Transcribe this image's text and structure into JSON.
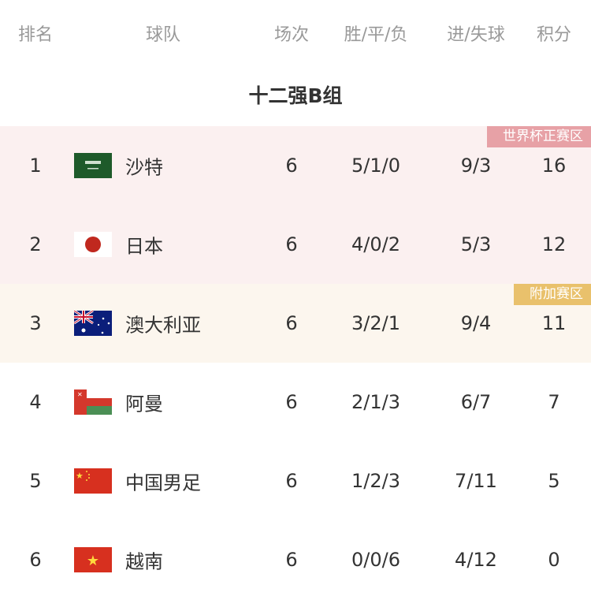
{
  "header": {
    "rank": "排名",
    "team": "球队",
    "played": "场次",
    "wdl": "胜/平/负",
    "goals": "进/失球",
    "points": "积分"
  },
  "title": "十二强B组",
  "zones": {
    "qualify": {
      "label": "世界杯正赛区",
      "color": "#e7a1a6",
      "row_bg": "#fbf0f0"
    },
    "playoff": {
      "label": "附加赛区",
      "color": "#e9c16c",
      "row_bg": "#fcf6ee"
    }
  },
  "rows": [
    {
      "rank": "1",
      "team": "沙特",
      "flag": "saudi-arabia-flag",
      "played": "6",
      "wdl": "5/1/0",
      "goals": "9/3",
      "points": "16"
    },
    {
      "rank": "2",
      "team": "日本",
      "flag": "japan-flag",
      "played": "6",
      "wdl": "4/0/2",
      "goals": "5/3",
      "points": "12"
    },
    {
      "rank": "3",
      "team": "澳大利亚",
      "flag": "australia-flag",
      "played": "6",
      "wdl": "3/2/1",
      "goals": "9/4",
      "points": "11"
    },
    {
      "rank": "4",
      "team": "阿曼",
      "flag": "oman-flag",
      "played": "6",
      "wdl": "2/1/3",
      "goals": "6/7",
      "points": "7"
    },
    {
      "rank": "5",
      "team": "中国男足",
      "flag": "china-flag",
      "played": "6",
      "wdl": "1/2/3",
      "goals": "7/11",
      "points": "5"
    },
    {
      "rank": "6",
      "team": "越南",
      "flag": "vietnam-flag",
      "played": "6",
      "wdl": "0/0/6",
      "goals": "4/12",
      "points": "0"
    }
  ]
}
